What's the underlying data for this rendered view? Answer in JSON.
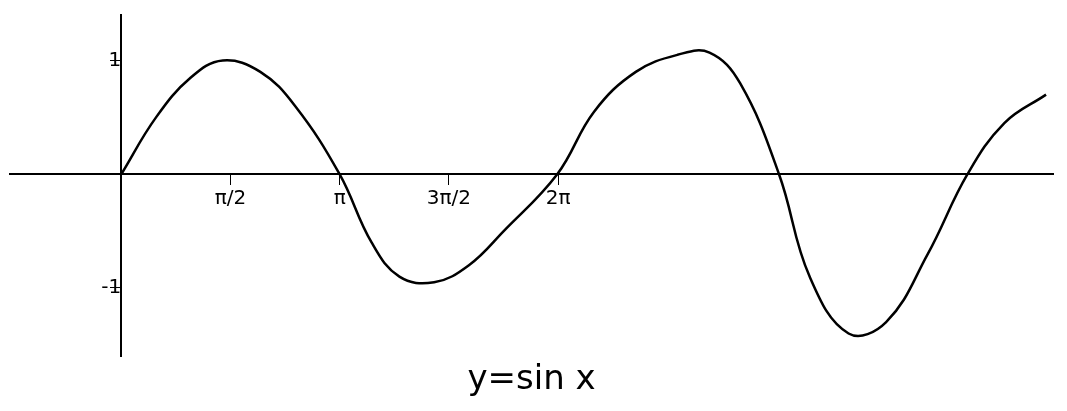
{
  "chart_data": {
    "type": "line",
    "title": "y=sin x",
    "x": [
      0,
      0.5,
      1,
      1.46,
      2,
      2.5,
      3.14,
      3.6,
      4.0,
      4.5,
      5.0,
      5.5,
      6.27,
      6.8,
      7.4,
      8.0,
      8.46,
      8.9,
      9.46,
      9.9,
      10.46,
      11.0,
      11.6,
      12.17,
      12.7,
      13.3
    ],
    "values": [
      0,
      0.5,
      0.85,
      1.0,
      0.9,
      0.6,
      0,
      -0.6,
      -0.9,
      -0.95,
      -0.8,
      -0.5,
      0,
      0.55,
      0.9,
      1.05,
      1.07,
      0.8,
      0,
      -0.9,
      -1.4,
      -1.3,
      -0.7,
      0,
      0.45,
      0.7
    ],
    "color": "#000000",
    "xlim": [
      -1.6,
      13.4
    ],
    "ylim": [
      -1.6,
      1.4
    ],
    "xticks": [
      {
        "value": 1.5708,
        "label": "π/2"
      },
      {
        "value": 3.1416,
        "label": "π"
      },
      {
        "value": 4.7124,
        "label": "3π/2"
      },
      {
        "value": 6.2832,
        "label": "2π"
      }
    ],
    "yticks": [
      -1,
      1
    ],
    "grid": false
  }
}
